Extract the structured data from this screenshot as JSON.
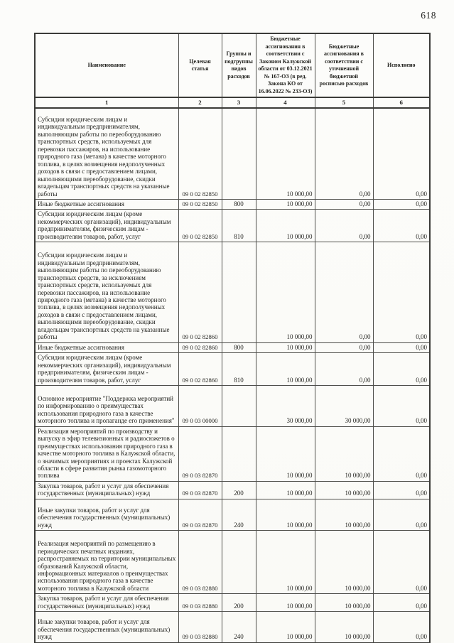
{
  "page": {
    "number": "618"
  },
  "table": {
    "headers": [
      "Наименование",
      "Целевая статья",
      "Группы и подгруппы видов расходов",
      "Бюджетные ассигнования в соответствии с Законом Калужской области от 03.12.2021 № 167-ОЗ (в ред. Закона КО от 16.06.2022 № 233-ОЗ)",
      "Бюджетные ассигнования в соответствии с уточненной бюджетной росписью расходов",
      "Исполнено"
    ],
    "column_numbers": [
      "1",
      "2",
      "3",
      "4",
      "5",
      "6"
    ],
    "rows": [
      {
        "name": "Субсидии юридическим лицам и индивидуальным предпринимателям, выполняющим работы по переоборудованию транспортных средств, используемых для перевозки пассажиров, на использование природного газа (метана) в качестве моторного топлива, в целях возмещения недополученных доходов в связи с предоставлением лицами, выполняющими переоборудование, скидки владельцам транспортных средств на указанные работы",
        "target_article": "09 0 02 82850",
        "expense_group": "",
        "assigned_by_law": "10 000,00",
        "assigned_updated": "0,00",
        "executed": "0,00"
      },
      {
        "name": "Иные бюджетные ассигнования",
        "target_article": "09 0 02 82850",
        "expense_group": "800",
        "assigned_by_law": "10 000,00",
        "assigned_updated": "0,00",
        "executed": "0,00"
      },
      {
        "name": "Субсидии юридическим лицам (кроме некоммерческих организаций), индивидуальным предпринимателям, физическим лицам - производителям товаров, работ, услуг",
        "target_article": "09 0 02 82850",
        "expense_group": "810",
        "assigned_by_law": "10 000,00",
        "assigned_updated": "0,00",
        "executed": "0,00"
      },
      {
        "name": "Субсидии юридическим лицам и индивидуальным предпринимателям, выполняющим работы по переоборудованию транспортных средств, за исключением транспортных средств, используемых для перевозки пассажиров, на использование природного газа (метана) в качестве моторного топлива, в целях возмещения недополученных доходов в связи с предоставлением лицами, выполняющими переоборудование, скидки владельцам транспортных средств на указанные работы",
        "target_article": "09 0 02 82860",
        "expense_group": "",
        "assigned_by_law": "10 000,00",
        "assigned_updated": "0,00",
        "executed": "0,00"
      },
      {
        "name": "Иные бюджетные ассигнования",
        "target_article": "09 0 02 82860",
        "expense_group": "800",
        "assigned_by_law": "10 000,00",
        "assigned_updated": "0,00",
        "executed": "0,00"
      },
      {
        "name": "Субсидии юридическим лицам (кроме некоммерческих организаций), индивидуальным предпринимателям, физическим лицам - производителям товаров, работ, услуг",
        "target_article": "09 0 02 82860",
        "expense_group": "810",
        "assigned_by_law": "10 000,00",
        "assigned_updated": "0,00",
        "executed": "0,00"
      },
      {
        "name": "Основное мероприятие \"Поддержка мероприятий по информированию о преимуществах использования природного газа в качестве моторного топлива и пропаганде его применения\"",
        "target_article": "09 0 03 00000",
        "expense_group": "",
        "assigned_by_law": "30 000,00",
        "assigned_updated": "30 000,00",
        "executed": "0,00"
      },
      {
        "name": "Реализация мероприятий по производству и выпуску в эфир телевизионных и радиосюжетов о преимуществах использования природного газа в качестве моторного топлива в Калужской области, о значимых мероприятиях и проектах Калужской области в сфере развития рынка газомоторного топлива",
        "target_article": "09 0 03 82870",
        "expense_group": "",
        "assigned_by_law": "10 000,00",
        "assigned_updated": "10 000,00",
        "executed": "0,00"
      },
      {
        "name": "Закупка товаров, работ и услуг для обеспечения государственных (муниципальных) нужд",
        "target_article": "09 0 03 82870",
        "expense_group": "200",
        "assigned_by_law": "10 000,00",
        "assigned_updated": "10 000,00",
        "executed": "0,00"
      },
      {
        "name": "Иные закупки товаров, работ и услуг для обеспечения государственных (муниципальных) нужд",
        "target_article": "09 0 03 82870",
        "expense_group": "240",
        "assigned_by_law": "10 000,00",
        "assigned_updated": "10 000,00",
        "executed": "0,00"
      },
      {
        "name": "Реализация мероприятий по размещению в периодических печатных изданиях, распространяемых на территории муниципальных образований Калужской области, информационных материалов о преимуществах использования природного газа в качестве моторного топлива в Калужской области",
        "target_article": "09 0 03 82880",
        "expense_group": "",
        "assigned_by_law": "10 000,00",
        "assigned_updated": "10 000,00",
        "executed": "0,00"
      },
      {
        "name": "Закупка товаров, работ и услуг для обеспечения государственных (муниципальных) нужд",
        "target_article": "09 0 03 82880",
        "expense_group": "200",
        "assigned_by_law": "10 000,00",
        "assigned_updated": "10 000,00",
        "executed": "0,00"
      },
      {
        "name": "Иные закупки товаров, работ и услуг для обеспечения государственных (муниципальных) нужд",
        "target_article": "09 0 03 82880",
        "expense_group": "240",
        "assigned_by_law": "10 000,00",
        "assigned_updated": "10 000,00",
        "executed": "0,00"
      }
    ]
  }
}
